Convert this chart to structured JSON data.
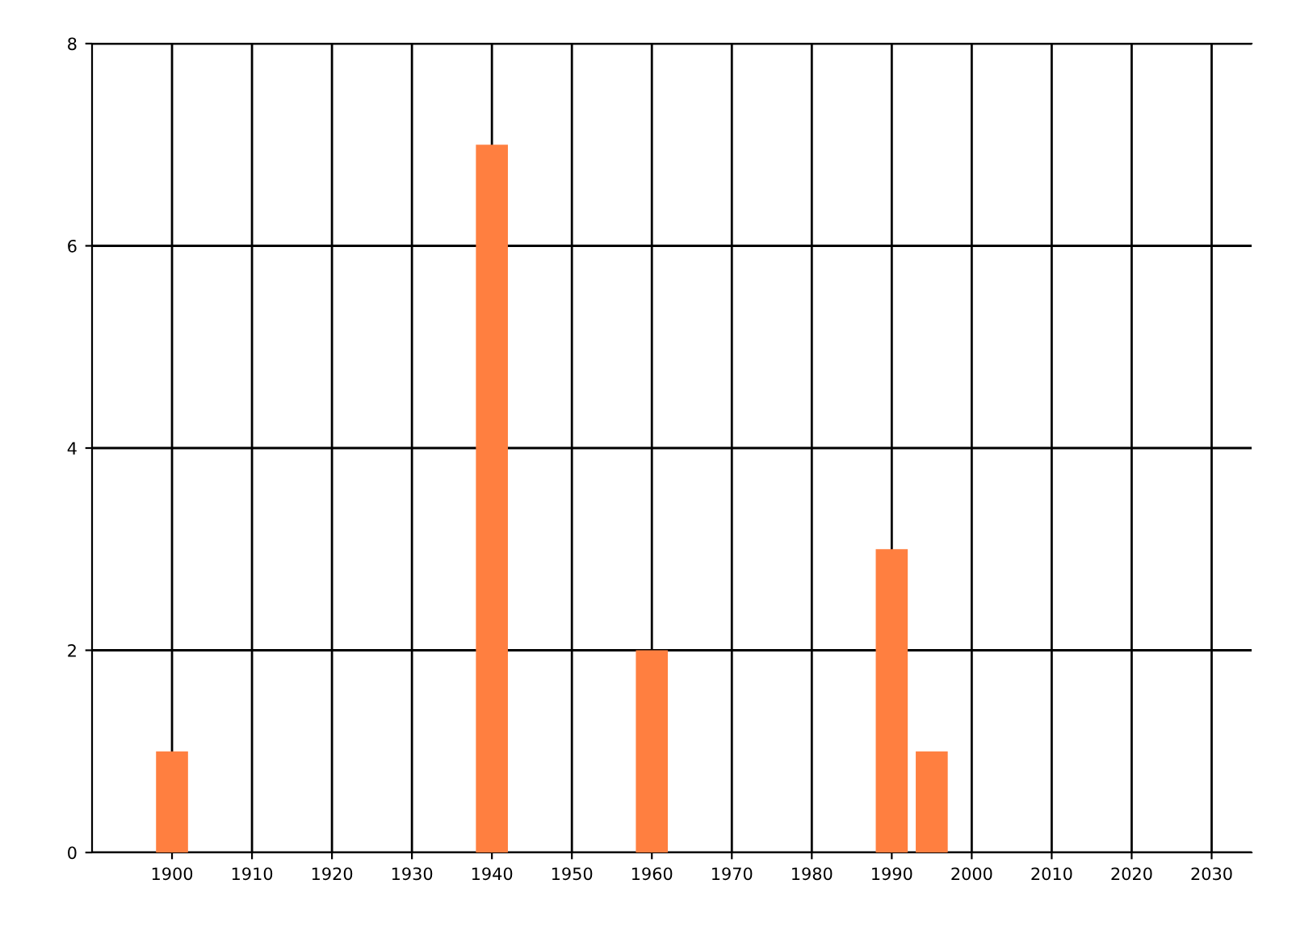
{
  "chart_data": {
    "type": "bar",
    "x": [
      1900,
      1940,
      1960,
      1990,
      1995
    ],
    "values": [
      1,
      7,
      2,
      3,
      1
    ],
    "color": "#ff7f40",
    "xlim": [
      1890,
      2035
    ],
    "xticks": [
      1900,
      1910,
      1920,
      1930,
      1940,
      1950,
      1960,
      1970,
      1980,
      1990,
      2000,
      2010,
      2020,
      2030
    ],
    "ylim": [
      0,
      8
    ],
    "yticks": [
      0,
      2,
      4,
      6,
      8
    ],
    "grid": true,
    "legend": false
  }
}
